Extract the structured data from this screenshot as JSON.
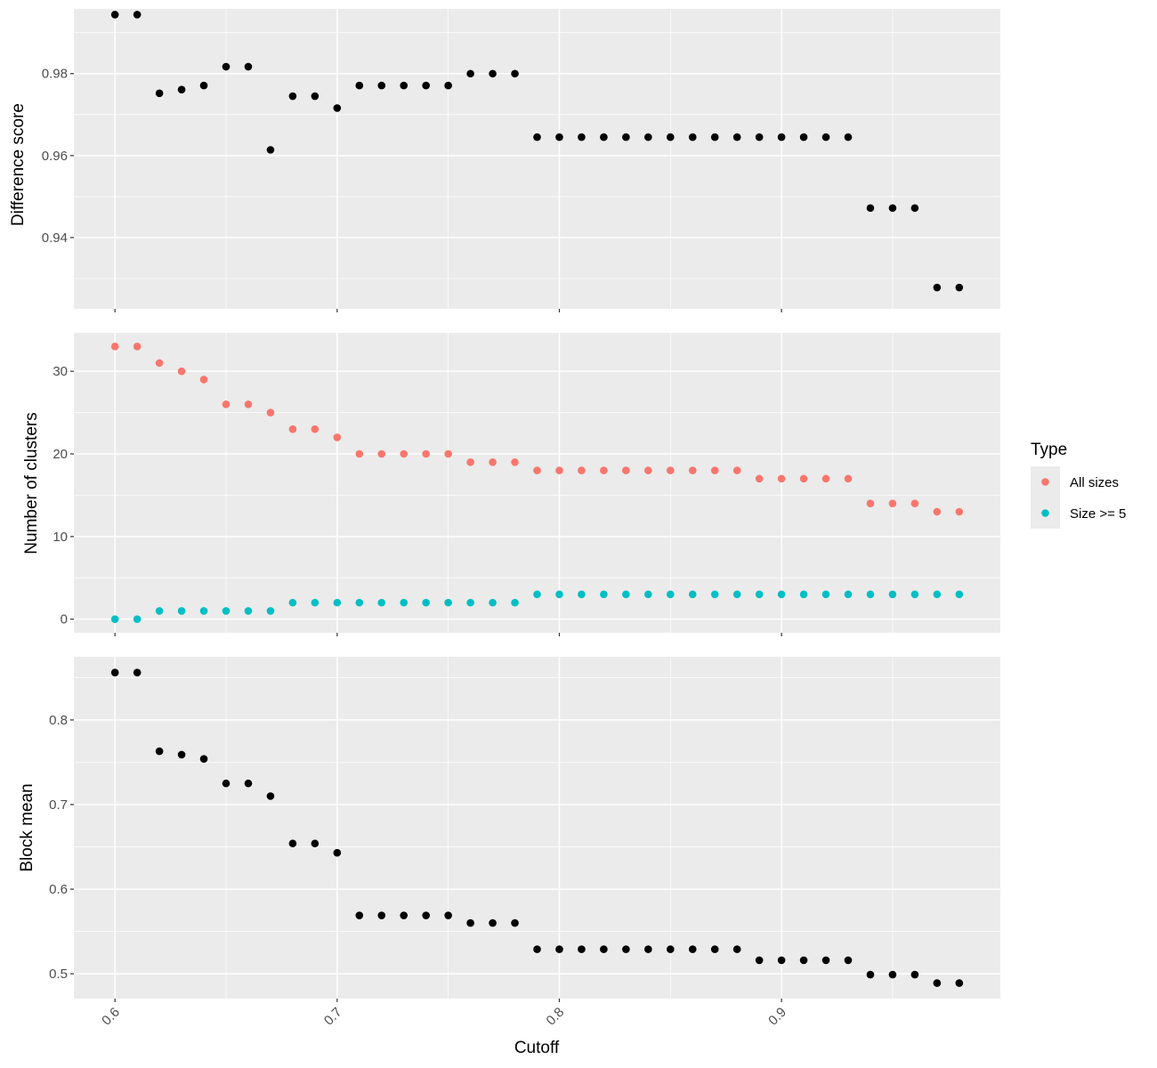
{
  "chart_data": {
    "type": "scatter",
    "xlabel": "Cutoff",
    "x_ticks": [
      0.6,
      0.7,
      0.8,
      0.9
    ],
    "x_tick_labels": [
      "0.6",
      "0.7",
      "0.8",
      "0.9"
    ],
    "xlim": [
      0.5815,
      0.9985
    ],
    "x": [
      0.6,
      0.61,
      0.62,
      0.63,
      0.64,
      0.65,
      0.66,
      0.67,
      0.68,
      0.69,
      0.7,
      0.71,
      0.72,
      0.73,
      0.74,
      0.75,
      0.76,
      0.77,
      0.78,
      0.79,
      0.8,
      0.81,
      0.82,
      0.83,
      0.84,
      0.85,
      0.86,
      0.87,
      0.88,
      0.89,
      0.9,
      0.91,
      0.92,
      0.93,
      0.94,
      0.95,
      0.96,
      0.97,
      0.98
    ],
    "grid": true,
    "panels": [
      {
        "ylabel": "Difference score",
        "ylim": [
          0.9226,
          0.9958
        ],
        "y_ticks": [
          0.94,
          0.96,
          0.98
        ],
        "y_tick_labels": [
          "0.94",
          "0.96",
          "0.98"
        ],
        "series": [
          {
            "color": "#000000",
            "values": [
              0.9944,
              0.9944,
              0.9752,
              0.9761,
              0.9771,
              0.9817,
              0.9817,
              0.9614,
              0.9745,
              0.9745,
              0.9716,
              0.9771,
              0.9771,
              0.9771,
              0.9771,
              0.9771,
              0.98,
              0.98,
              0.98,
              0.9645,
              0.9645,
              0.9645,
              0.9645,
              0.9645,
              0.9645,
              0.9645,
              0.9645,
              0.9645,
              0.9645,
              0.9645,
              0.9645,
              0.9645,
              0.9645,
              0.9645,
              0.9472,
              0.9472,
              0.9472,
              0.9278,
              0.9278
            ]
          }
        ]
      },
      {
        "ylabel": "Number of clusters",
        "ylim": [
          -1.65,
          34.65
        ],
        "y_ticks": [
          0,
          10,
          20,
          30
        ],
        "y_tick_labels": [
          "0",
          "10",
          "20",
          "30"
        ],
        "series": [
          {
            "name": "All sizes",
            "color": "#F8766D",
            "values": [
              33,
              33,
              31,
              30,
              29,
              26,
              26,
              25,
              23,
              23,
              22,
              20,
              20,
              20,
              20,
              20,
              19,
              19,
              19,
              18,
              18,
              18,
              18,
              18,
              18,
              18,
              18,
              18,
              18,
              17,
              17,
              17,
              17,
              17,
              14,
              14,
              14,
              13,
              13
            ]
          },
          {
            "name": "Size >= 5",
            "color": "#00BFC4",
            "values": [
              0,
              0,
              1,
              1,
              1,
              1,
              1,
              1,
              2,
              2,
              2,
              2,
              2,
              2,
              2,
              2,
              2,
              2,
              2,
              3,
              3,
              3,
              3,
              3,
              3,
              3,
              3,
              3,
              3,
              3,
              3,
              3,
              3,
              3,
              3,
              3,
              3,
              3,
              3
            ]
          }
        ]
      },
      {
        "ylabel": "Block mean",
        "ylim": [
          0.4707,
          0.8746
        ],
        "y_ticks": [
          0.5,
          0.6,
          0.7,
          0.8
        ],
        "y_tick_labels": [
          "0.5",
          "0.6",
          "0.7",
          "0.8"
        ],
        "series": [
          {
            "color": "#000000",
            "values": [
              0.856,
              0.856,
              0.763,
              0.759,
              0.754,
              0.725,
              0.725,
              0.71,
              0.654,
              0.654,
              0.643,
              0.569,
              0.569,
              0.569,
              0.569,
              0.569,
              0.56,
              0.56,
              0.56,
              0.529,
              0.529,
              0.529,
              0.529,
              0.529,
              0.529,
              0.529,
              0.529,
              0.529,
              0.529,
              0.516,
              0.516,
              0.516,
              0.516,
              0.516,
              0.499,
              0.499,
              0.499,
              0.489,
              0.489
            ]
          }
        ]
      }
    ],
    "legend": {
      "title": "Type",
      "placement": "right",
      "entries": [
        {
          "label": "All sizes",
          "color": "#F8766D"
        },
        {
          "label": "Size >= 5",
          "color": "#00BFC4"
        }
      ]
    }
  }
}
